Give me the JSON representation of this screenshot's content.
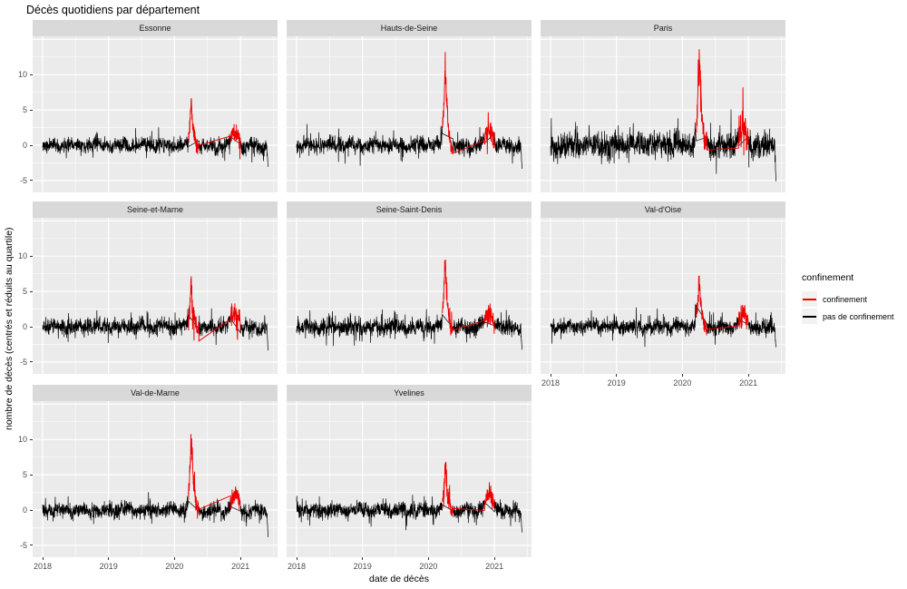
{
  "title": "Décès quotidiens par département",
  "axes": {
    "x_label": "date de décès",
    "y_label": "nombre de décès (centrés et réduits au quartile)",
    "x_ticks": [
      "2018",
      "2019",
      "2020",
      "2021"
    ],
    "y_ticks": [
      "10",
      "5",
      "0",
      "-5"
    ]
  },
  "legend": {
    "title": "confinement",
    "entries": [
      {
        "label": "confinement",
        "color": "#EE0000"
      },
      {
        "label": "pas de confinement",
        "color": "#000000"
      }
    ]
  },
  "colors": {
    "page_bg": "#FFFFFF",
    "panel_bg": "#EBEBEB",
    "strip_bg": "#D9D9D9",
    "grid": "#FFFFFF",
    "tick_text": "#4D4D4D",
    "tick_mark": "#333333",
    "line_black": "#000000",
    "line_red": "#EE0000",
    "legend_key_bg": "#F2F2F2"
  },
  "chart_data": {
    "type": "line",
    "title": "Décès quotidiens par département",
    "xlabel": "date de décès",
    "ylabel": "nombre de décès (centrés et réduits au quartile)",
    "x_major_ticks": [
      2018,
      2019,
      2020,
      2021
    ],
    "x_minor_ticks": [
      2018.5,
      2019.5,
      2020.5,
      2021.5
    ],
    "y_major_ticks": [
      -5,
      0,
      5,
      10,
      15
    ],
    "y_minor_ticks": [
      -2.5,
      2.5,
      7.5,
      12.5
    ],
    "y_labeled_ticks": [
      10,
      5,
      0,
      -5
    ],
    "x_range": [
      2017.85,
      2021.56
    ],
    "y_range": [
      -6.7,
      15.4
    ],
    "x_data_range": [
      2018.0,
      2021.42
    ],
    "grid": "on",
    "legend_position": "right",
    "series_groups": [
      "confinement (red)",
      "pas de confinement (black)"
    ],
    "lockdowns": [
      [
        2020.21,
        2020.37
      ],
      [
        2020.85,
        2021.0
      ]
    ],
    "facets": [
      {
        "name": "Essonne",
        "row": 0,
        "col": 0,
        "first_wave_peak": 6.3,
        "second_wave_peak": 1.8,
        "noise_sd": 0.5,
        "end_value": -3.2,
        "seed": 11
      },
      {
        "name": "Hauts-de-Seine",
        "row": 0,
        "col": 1,
        "first_wave_peak": 11.8,
        "second_wave_peak": 1.9,
        "noise_sd": 0.55,
        "end_value": -3.5,
        "seed": 23
      },
      {
        "name": "Paris",
        "row": 0,
        "col": 2,
        "first_wave_peak": 14.0,
        "second_wave_peak": 2.2,
        "noise_sd": 0.85,
        "end_value": -5.3,
        "seed": 37
      },
      {
        "name": "Seine-et-Marne",
        "row": 1,
        "col": 0,
        "first_wave_peak": 5.8,
        "second_wave_peak": 2.0,
        "noise_sd": 0.52,
        "end_value": -3.5,
        "seed": 41
      },
      {
        "name": "Seine-Saint-Denis",
        "row": 1,
        "col": 1,
        "first_wave_peak": 10.2,
        "second_wave_peak": 2.0,
        "noise_sd": 0.55,
        "end_value": -3.3,
        "seed": 53
      },
      {
        "name": "Val-d'Oise",
        "row": 1,
        "col": 2,
        "first_wave_peak": 7.0,
        "second_wave_peak": 1.7,
        "noise_sd": 0.52,
        "end_value": -3.0,
        "seed": 67
      },
      {
        "name": "Val-de-Marne",
        "row": 2,
        "col": 0,
        "first_wave_peak": 10.5,
        "second_wave_peak": 2.0,
        "noise_sd": 0.52,
        "end_value": -4.0,
        "seed": 79
      },
      {
        "name": "Yvelines",
        "row": 2,
        "col": 1,
        "first_wave_peak": 5.8,
        "second_wave_peak": 1.9,
        "noise_sd": 0.52,
        "end_value": -3.3,
        "seed": 97
      }
    ]
  }
}
